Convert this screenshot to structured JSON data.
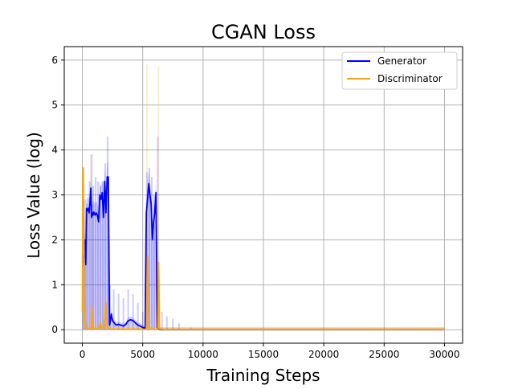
{
  "chart_data": {
    "type": "line",
    "title": "CGAN Loss",
    "xlabel": "Training Steps",
    "ylabel": "Loss Value (log)",
    "xlim": [
      -1500,
      31500
    ],
    "ylim": [
      -0.3,
      6.3
    ],
    "xticks": [
      0,
      5000,
      10000,
      15000,
      20000,
      25000,
      30000
    ],
    "yticks": [
      0,
      1,
      2,
      3,
      4,
      5,
      6
    ],
    "grid": true,
    "legend_position": "top-right",
    "series": [
      {
        "name": "Generator",
        "color": "#0000ff",
        "raw_color": "#0000ff",
        "raw_opacity": 0.2,
        "smoothed": {
          "x": [
            0,
            50,
            120,
            200,
            280,
            350,
            420,
            500,
            560,
            620,
            700,
            760,
            820,
            880,
            950,
            1050,
            1150,
            1250,
            1350,
            1450,
            1550,
            1650,
            1750,
            1850,
            1950,
            2050,
            2150,
            2250,
            2320,
            2400,
            2500,
            2650,
            2800,
            3000,
            3200,
            3400,
            3600,
            3800,
            4000,
            4200,
            4400,
            4600,
            4800,
            5000,
            5200,
            5300,
            5400,
            5500,
            5600,
            5700,
            5800,
            5900,
            6000,
            6100,
            6200,
            6300,
            6400,
            6500,
            6700,
            7000,
            8000,
            10000,
            15000,
            20000,
            25000,
            30000
          ],
          "y": [
            1.6,
            1.65,
            1.5,
            2.0,
            1.45,
            2.7,
            2.65,
            2.7,
            2.6,
            2.8,
            3.15,
            2.5,
            2.6,
            2.55,
            2.62,
            2.55,
            2.6,
            2.55,
            2.4,
            3.0,
            2.9,
            3.05,
            2.5,
            3.3,
            2.6,
            3.4,
            3.4,
            0.1,
            0.2,
            0.35,
            0.2,
            0.15,
            0.1,
            0.12,
            0.1,
            0.08,
            0.12,
            0.2,
            0.22,
            0.2,
            0.15,
            0.1,
            0.08,
            0.05,
            0.03,
            2.6,
            2.9,
            3.25,
            3.0,
            2.8,
            2.0,
            2.4,
            2.6,
            3.05,
            0.05,
            0.02,
            0.01,
            0.0,
            0.0,
            0.0,
            0.0,
            0.0,
            0.0,
            0.0,
            0.0,
            0.0
          ]
        },
        "raw_spikes": {
          "x": [
            80,
            250,
            400,
            600,
            780,
            900,
            1100,
            1300,
            1500,
            1700,
            1900,
            2100,
            2300,
            2600,
            3000,
            3400,
            3800,
            4200,
            4600,
            5000,
            5350,
            5550,
            5750,
            5950,
            6250,
            6600,
            7000,
            7500,
            8000,
            9000
          ],
          "y": [
            2.6,
            2.9,
            2.8,
            3.3,
            3.9,
            3.2,
            3.4,
            3.3,
            3.2,
            3.3,
            3.7,
            4.3,
            1.0,
            0.9,
            0.8,
            0.7,
            0.9,
            0.8,
            0.6,
            0.4,
            3.5,
            3.6,
            3.4,
            3.0,
            4.3,
            0.4,
            0.3,
            0.25,
            0.15,
            0.05
          ]
        }
      },
      {
        "name": "Discriminator",
        "color": "#ffa500",
        "raw_color": "#ffa500",
        "raw_opacity": 0.2,
        "smoothed": {
          "x": [
            0,
            40,
            80,
            130,
            180,
            240,
            300,
            500,
            650,
            760,
            820,
            900,
            1100,
            1300,
            1400,
            1500,
            1600,
            1800,
            1950,
            2050,
            2150,
            2400,
            3000,
            4000,
            5000,
            5300,
            5400,
            5500,
            5700,
            6000,
            6250,
            6320,
            6400,
            6500,
            7000,
            10000,
            15000,
            20000,
            25000,
            30000
          ],
          "y": [
            0.4,
            3.2,
            3.6,
            2.0,
            0.6,
            0.2,
            0.03,
            0.02,
            0.02,
            0.02,
            0.5,
            0.02,
            0.02,
            0.02,
            0.05,
            0.15,
            0.02,
            0.02,
            0.6,
            0.05,
            0.02,
            0.01,
            0.01,
            0.01,
            0.01,
            0.01,
            1.65,
            0.02,
            0.01,
            0.01,
            0.01,
            1.5,
            0.02,
            0.01,
            0.0,
            0.0,
            0.0,
            0.0,
            0.0,
            0.0
          ]
        },
        "raw_spikes": {
          "x": [
            60,
            150,
            700,
            1450,
            1900,
            5350,
            6300
          ],
          "y": [
            3.6,
            1.5,
            3.9,
            1.2,
            0.8,
            5.9,
            5.85
          ]
        }
      }
    ]
  }
}
